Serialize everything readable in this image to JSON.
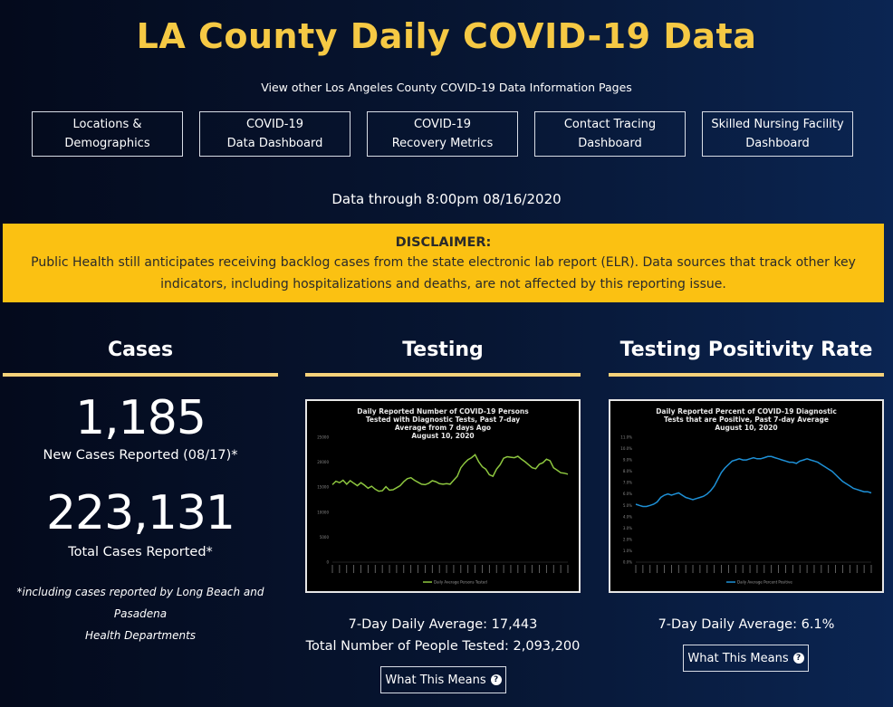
{
  "page": {
    "title": "LA County Daily COVID-19 Data"
  },
  "nav": {
    "subtitle": "View other Los Angeles County COVID-19 Data Information Pages",
    "buttons": [
      {
        "line1": "Locations &",
        "line2": "Demographics"
      },
      {
        "line1": "COVID-19",
        "line2": "Data Dashboard"
      },
      {
        "line1": "COVID-19",
        "line2": "Recovery Metrics"
      },
      {
        "line1": "Contact Tracing",
        "line2": "Dashboard"
      },
      {
        "line1": "Skilled Nursing Facility",
        "line2": "Dashboard"
      }
    ]
  },
  "data_through": "Data through 8:00pm 08/16/2020",
  "disclaimer": {
    "heading": "DISCLAIMER:",
    "body": "Public Health still anticipates receiving backlog cases from the state electronic lab report (ELR). Data sources that track other key indicators, including hospitalizations and deaths, are not affected by this reporting issue."
  },
  "colors": {
    "title": "#f6c944",
    "disclaimer_bg": "#fbc112",
    "underline": "#f6d27a",
    "testing_line": "#8dc63f",
    "positivity_line": "#1e90d6"
  },
  "cases": {
    "heading": "Cases",
    "new_cases": "1,185",
    "new_cases_label": "New Cases Reported (08/17)*",
    "total_cases": "223,131",
    "total_cases_label": "Total Cases Reported*",
    "footnote_line1": "*including cases reported by Long Beach and Pasadena",
    "footnote_line2": "Health Departments"
  },
  "testing": {
    "heading": "Testing",
    "daily_average": "7-Day Daily Average: 17,443",
    "total_tested": "Total Number of People Tested: 2,093,200",
    "button_label": "What This Means",
    "button_icon": "question-circle-icon"
  },
  "positivity": {
    "heading": "Testing Positivity Rate",
    "daily_average": "7-Day Daily Average: 6.1%",
    "button_label": "What This Means",
    "button_icon": "question-circle-icon"
  },
  "chart_data": [
    {
      "type": "line",
      "title": "Daily Reported Number of COVID-19 Persons Tested with Diagnostic Tests, Past 7-day Average from 7 days Ago",
      "subtitle": "August 10, 2020",
      "ylim": [
        0,
        25000
      ],
      "yticks": [
        "0",
        "5000",
        "10000",
        "15000",
        "20000",
        "25000"
      ],
      "legend": "Daily Average Persons Tested",
      "legend_position": "bottom",
      "series": [
        {
          "values": [
            15500,
            16200,
            15900,
            16400,
            15600,
            16300,
            15800,
            15300,
            15900,
            15400,
            14800,
            15200,
            14600,
            14200,
            14300,
            15100,
            14400,
            14500,
            14900,
            15300,
            16100,
            16700,
            16900,
            16400,
            16000,
            15600,
            15500,
            15800,
            16300,
            16100,
            15700,
            15600,
            15700,
            15600,
            16400,
            17200,
            18900,
            19800,
            20500,
            20900,
            21500,
            20100,
            19100,
            18600,
            17500,
            17200,
            18600,
            19500,
            20800,
            21100,
            21000,
            20900,
            21200,
            20600,
            20100,
            19500,
            18900,
            18700,
            19600,
            19900,
            20600,
            20300,
            18900,
            18400,
            17900,
            17800,
            17600
          ]
        }
      ]
    },
    {
      "type": "line",
      "title": "Daily Reported Percent of COVID-19 Diagnostic Tests that are Positive, Past 7-day Average",
      "subtitle": "August 10, 2020",
      "ylim": [
        0,
        11
      ],
      "yticks": [
        "0.0%",
        "1.0%",
        "2.0%",
        "3.0%",
        "4.0%",
        "5.0%",
        "6.0%",
        "7.0%",
        "8.0%",
        "9.0%",
        "10.0%",
        "11.0%"
      ],
      "legend": "Daily Average Percent Positive",
      "legend_position": "bottom",
      "series": [
        {
          "values": [
            5.1,
            5.0,
            4.9,
            4.9,
            5.0,
            5.1,
            5.3,
            5.7,
            5.9,
            6.0,
            5.9,
            6.0,
            6.1,
            5.9,
            5.7,
            5.6,
            5.5,
            5.6,
            5.7,
            5.8,
            6.0,
            6.3,
            6.7,
            7.3,
            7.9,
            8.3,
            8.6,
            8.9,
            9.0,
            9.1,
            9.0,
            9.0,
            9.1,
            9.2,
            9.1,
            9.1,
            9.2,
            9.3,
            9.3,
            9.2,
            9.1,
            9.0,
            8.9,
            8.8,
            8.8,
            8.7,
            8.9,
            9.0,
            9.1,
            9.0,
            8.9,
            8.8,
            8.6,
            8.4,
            8.2,
            8.0,
            7.7,
            7.4,
            7.1,
            6.9,
            6.7,
            6.5,
            6.4,
            6.3,
            6.2,
            6.2,
            6.1
          ]
        }
      ]
    }
  ]
}
